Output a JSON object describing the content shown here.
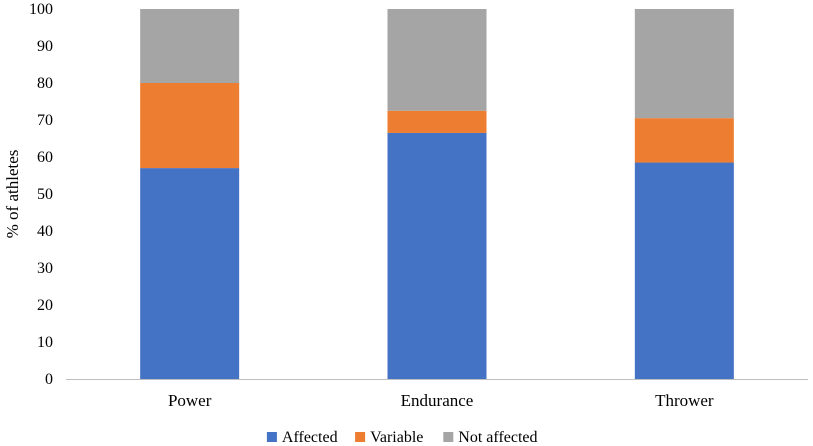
{
  "chart_data": {
    "type": "bar",
    "stacked": true,
    "categories": [
      "Power",
      "Endurance",
      "Thrower"
    ],
    "series": [
      {
        "name": "Affected",
        "color": "#4472C4",
        "values": [
          57,
          66.5,
          58.5
        ]
      },
      {
        "name": "Variable",
        "color": "#ED7D31",
        "values": [
          23,
          6,
          12
        ]
      },
      {
        "name": "Not affected",
        "color": "#A5A5A5",
        "values": [
          20,
          27.5,
          29.5
        ]
      }
    ],
    "ylabel": "% of athletes",
    "ylim": [
      0,
      100
    ],
    "yticks": [
      0,
      10,
      20,
      30,
      40,
      50,
      60,
      70,
      80,
      90,
      100
    ],
    "grid": false,
    "legend": "bottom"
  }
}
